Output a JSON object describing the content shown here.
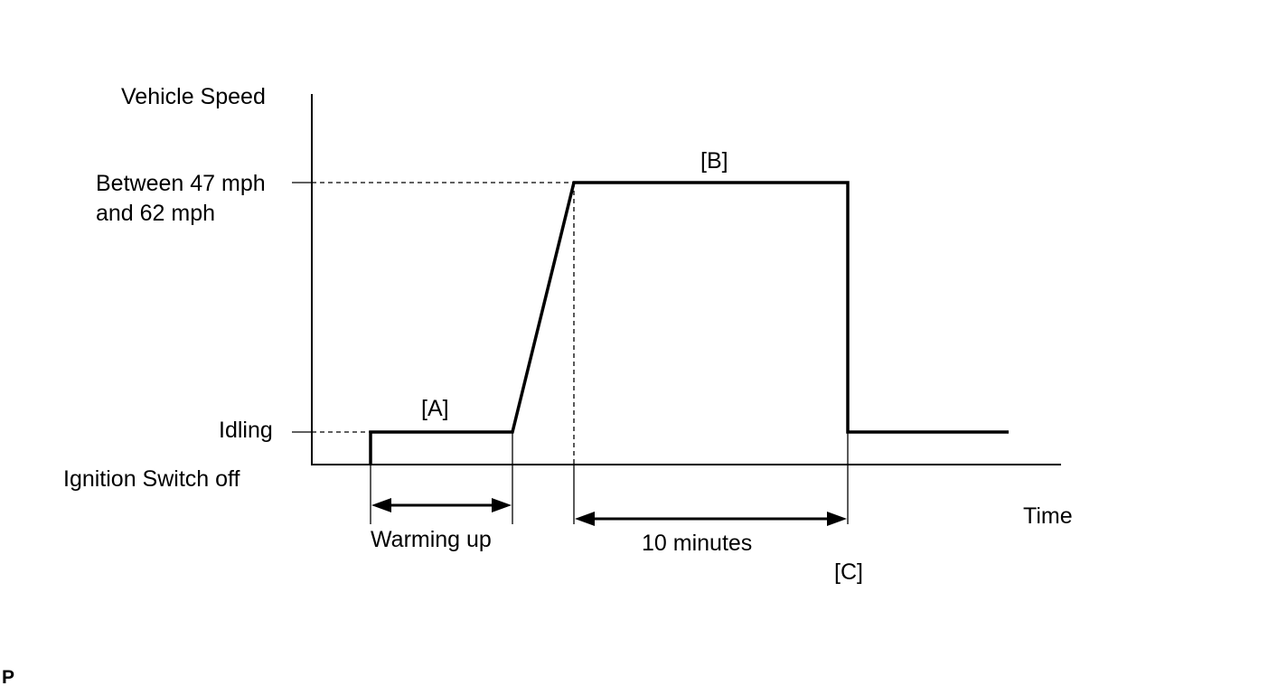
{
  "y_axis": {
    "title": "Vehicle Speed",
    "levels": {
      "high_line1": "Between 47 mph",
      "high_line2": "and 62 mph",
      "idle": "Idling",
      "off": "Ignition Switch off"
    }
  },
  "x_axis": {
    "title": "Time"
  },
  "markers": {
    "a": "[A]",
    "b": "[B]",
    "c": "[C]"
  },
  "intervals": {
    "warmup": "Warming up",
    "cruise": "10 minutes"
  },
  "footer": {
    "code": "P"
  }
}
